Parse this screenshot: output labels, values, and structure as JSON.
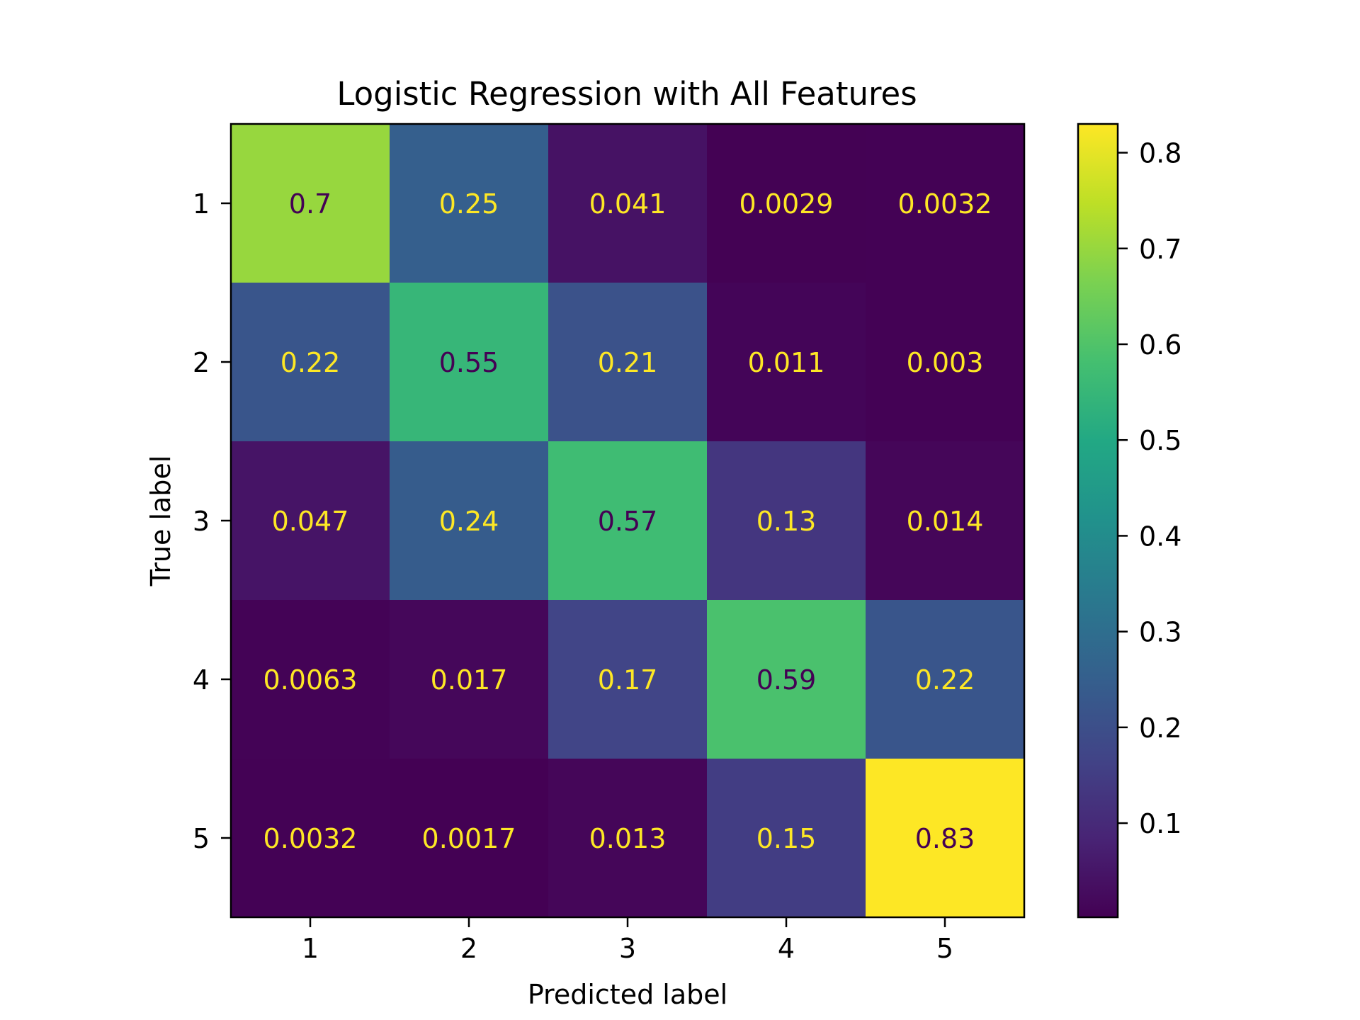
{
  "chart_data": {
    "type": "heatmap",
    "title": "Logistic Regression with All Features",
    "xlabel": "Predicted label",
    "ylabel": "True label",
    "x_categories": [
      "1",
      "2",
      "3",
      "4",
      "5"
    ],
    "y_categories": [
      "1",
      "2",
      "3",
      "4",
      "5"
    ],
    "matrix": [
      [
        0.7,
        0.25,
        0.041,
        0.0029,
        0.0032
      ],
      [
        0.22,
        0.55,
        0.21,
        0.011,
        0.003
      ],
      [
        0.047,
        0.24,
        0.57,
        0.13,
        0.014
      ],
      [
        0.0063,
        0.017,
        0.17,
        0.59,
        0.22
      ],
      [
        0.0032,
        0.0017,
        0.013,
        0.15,
        0.83
      ]
    ],
    "cell_labels": [
      [
        "0.7",
        "0.25",
        "0.041",
        "0.0029",
        "0.0032"
      ],
      [
        "0.22",
        "0.55",
        "0.21",
        "0.011",
        "0.003"
      ],
      [
        "0.047",
        "0.24",
        "0.57",
        "0.13",
        "0.014"
      ],
      [
        "0.0063",
        "0.017",
        "0.17",
        "0.59",
        "0.22"
      ],
      [
        "0.0032",
        "0.0017",
        "0.013",
        "0.15",
        "0.83"
      ]
    ],
    "colormap": "viridis",
    "colorbar": {
      "range": [
        0.0017,
        0.83
      ],
      "ticks": [
        0.1,
        0.2,
        0.3,
        0.4,
        0.5,
        0.6,
        0.7,
        0.8
      ],
      "tick_labels": [
        "0.1",
        "0.2",
        "0.3",
        "0.4",
        "0.5",
        "0.6",
        "0.7",
        "0.8"
      ],
      "position": "right"
    },
    "grid": false,
    "text_colors": {
      "light": "#fde725",
      "dark": "#440154"
    }
  }
}
